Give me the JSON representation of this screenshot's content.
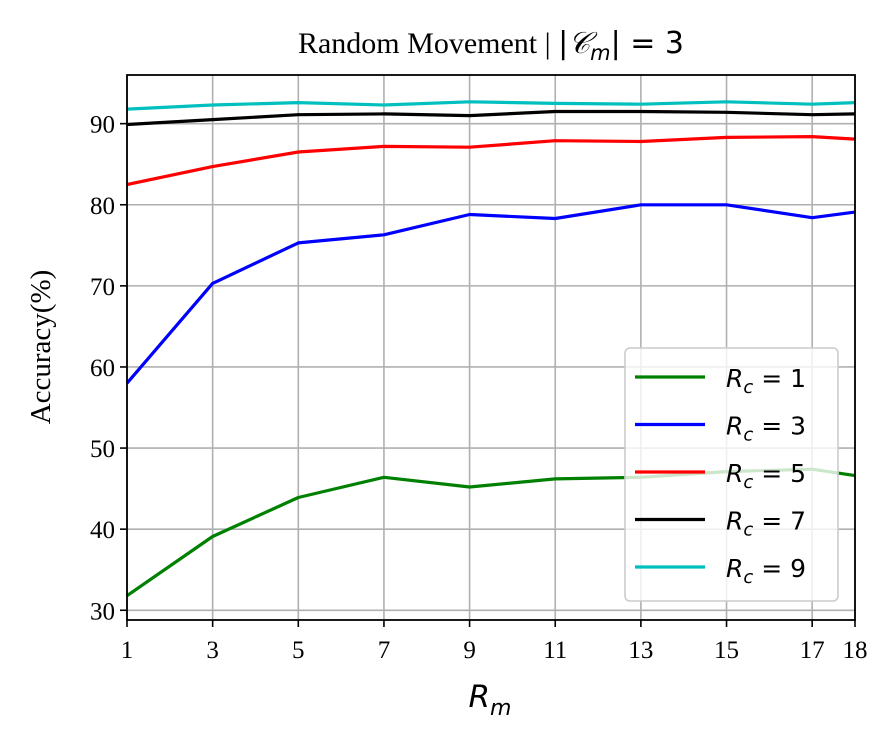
{
  "chart_data": {
    "type": "line",
    "title": "Random Movement | |𝒞m| = 3",
    "title_parts": {
      "prefix": "Random Movement | ",
      "bar_left": "|",
      "calC": "𝒞",
      "sub": "m",
      "bar_right": "| = 3"
    },
    "xlabel": {
      "main": "R",
      "sub": "m"
    },
    "ylabel": "Accuracy(%)",
    "x": [
      1,
      3,
      5,
      7,
      9,
      11,
      13,
      15,
      17,
      18
    ],
    "x_ticks": [
      "1",
      "3",
      "5",
      "7",
      "9",
      "11",
      "13",
      "15",
      "17",
      "18"
    ],
    "y_ticks": [
      "30",
      "40",
      "50",
      "60",
      "70",
      "80",
      "90"
    ],
    "xlim": [
      1,
      18
    ],
    "ylim": [
      28.8,
      96.0
    ],
    "grid": true,
    "legend_position": "lower-right",
    "series": [
      {
        "name": "Rc = 1",
        "label_main": "R",
        "label_sub": "c",
        "label_value": " = 1",
        "color": "#008000",
        "values": [
          31.8,
          39.1,
          43.9,
          46.4,
          45.2,
          46.2,
          46.4,
          47.1,
          47.4,
          46.6
        ]
      },
      {
        "name": "Rc = 3",
        "label_main": "R",
        "label_sub": "c",
        "label_value": " = 3",
        "color": "#0000ff",
        "values": [
          58.0,
          70.3,
          75.3,
          76.3,
          78.8,
          78.3,
          80.0,
          80.0,
          78.4,
          79.1
        ]
      },
      {
        "name": "Rc = 5",
        "label_main": "R",
        "label_sub": "c",
        "label_value": " = 5",
        "color": "#ff0000",
        "values": [
          82.5,
          84.7,
          86.5,
          87.2,
          87.1,
          87.9,
          87.8,
          88.3,
          88.4,
          88.1
        ]
      },
      {
        "name": "Rc = 7",
        "label_main": "R",
        "label_sub": "c",
        "label_value": " = 7",
        "color": "#000000",
        "values": [
          89.9,
          90.5,
          91.1,
          91.2,
          91.0,
          91.5,
          91.5,
          91.4,
          91.1,
          91.2
        ]
      },
      {
        "name": "Rc = 9",
        "label_main": "R",
        "label_sub": "c",
        "label_value": " = 9",
        "color": "#00bfbf",
        "values": [
          91.8,
          92.3,
          92.6,
          92.3,
          92.7,
          92.5,
          92.4,
          92.7,
          92.4,
          92.6
        ]
      }
    ]
  }
}
